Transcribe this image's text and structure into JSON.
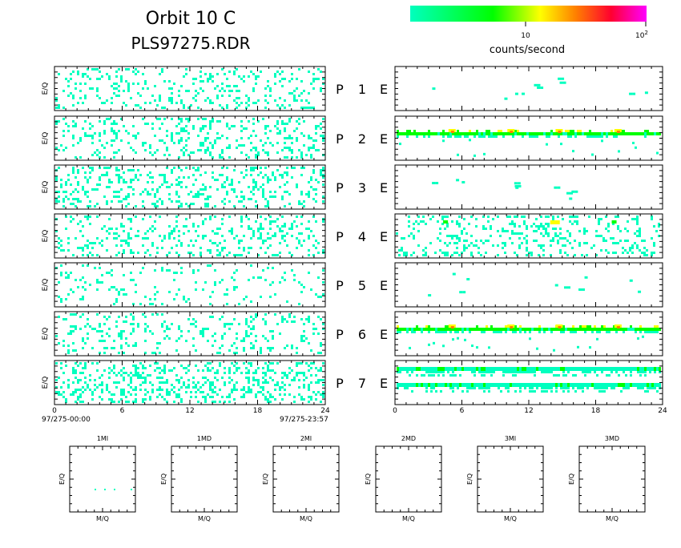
{
  "header": {
    "title": "Orbit 10 C",
    "subtitle": "PLS97275.RDR"
  },
  "colorbar": {
    "unit_label": "counts/second",
    "tick_10": "10",
    "tick_100_base": "10",
    "tick_100_exp": "2",
    "colors": [
      "#00ffbf",
      "#00ff00",
      "#ffff00",
      "#ff8000",
      "#ff0030",
      "#ff00ff"
    ]
  },
  "panel_labels": {
    "ylabel": "E/Q",
    "channel_letter": "P",
    "right_letter": "E",
    "channels": [
      "1",
      "2",
      "3",
      "4",
      "5",
      "6",
      "7"
    ]
  },
  "time_axis": {
    "ticks": [
      "0",
      "6",
      "12",
      "18",
      "24"
    ],
    "start_label": "97/275-00:00",
    "end_label": "97/275-23:57"
  },
  "mq_panels": {
    "titles": [
      "1MI",
      "1MD",
      "2MI",
      "2MD",
      "3MI",
      "3MD"
    ],
    "xlabel": "M/Q",
    "ylabel": "E/Q"
  },
  "chart_data": {
    "type": "heatmap",
    "x_range": [
      0,
      24
    ],
    "x_unit": "hours",
    "color_scale": "log",
    "color_range": [
      1,
      100
    ],
    "left_column_density": [
      0.16,
      0.18,
      0.2,
      0.18,
      0.08,
      0.15,
      0.27
    ],
    "right_column_features": [
      "sparse",
      "band",
      "sparse",
      "noisy",
      "sparse",
      "band",
      "dense_bands"
    ]
  }
}
